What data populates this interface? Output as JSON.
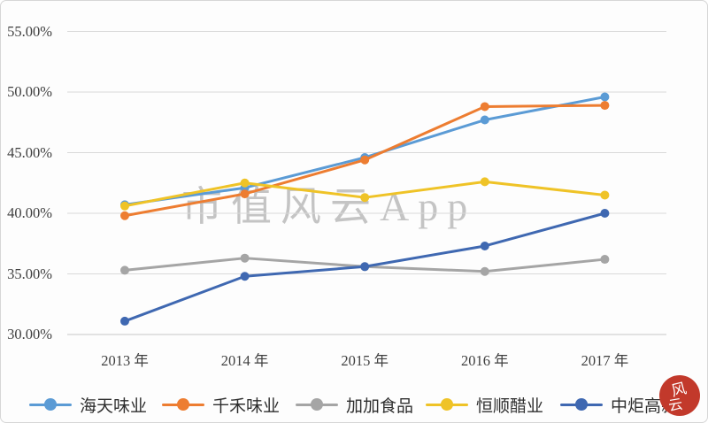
{
  "chart_data": {
    "type": "line",
    "title": "",
    "categories": [
      "2013 年",
      "2014 年",
      "2015 年",
      "2016 年",
      "2017 年"
    ],
    "series": [
      {
        "name": "海天味业",
        "color": "#5B9BD5",
        "values": [
          40.7,
          42.1,
          44.6,
          47.7,
          49.6
        ]
      },
      {
        "name": "千禾味业",
        "color": "#ED7D31",
        "values": [
          39.8,
          41.6,
          44.4,
          48.8,
          48.9
        ]
      },
      {
        "name": "加加食品",
        "color": "#A5A5A5",
        "values": [
          35.3,
          36.3,
          35.6,
          35.2,
          36.2
        ]
      },
      {
        "name": "恒顺醋业",
        "color": "#EFC327",
        "values": [
          40.6,
          42.5,
          41.3,
          42.6,
          41.5
        ]
      },
      {
        "name": "中炬高新",
        "color": "#3F68B1",
        "values": [
          31.1,
          34.8,
          35.6,
          37.3,
          40.0
        ]
      }
    ],
    "ylim": [
      30,
      55
    ],
    "yticks": [
      30,
      35,
      40,
      45,
      50,
      55
    ],
    "ytick_labels": [
      "30.00%",
      "35.00%",
      "40.00%",
      "45.00%",
      "50.00%",
      "55.00%"
    ],
    "xlabel": "",
    "ylabel": "",
    "grid": true,
    "gridline_color": "#D9D9D9",
    "legend_position": "bottom",
    "marker": "circle"
  },
  "watermark": {
    "text": "市值风云App"
  },
  "stamp": {
    "line1": "风",
    "line2": "云",
    "color": "#c2392b"
  }
}
